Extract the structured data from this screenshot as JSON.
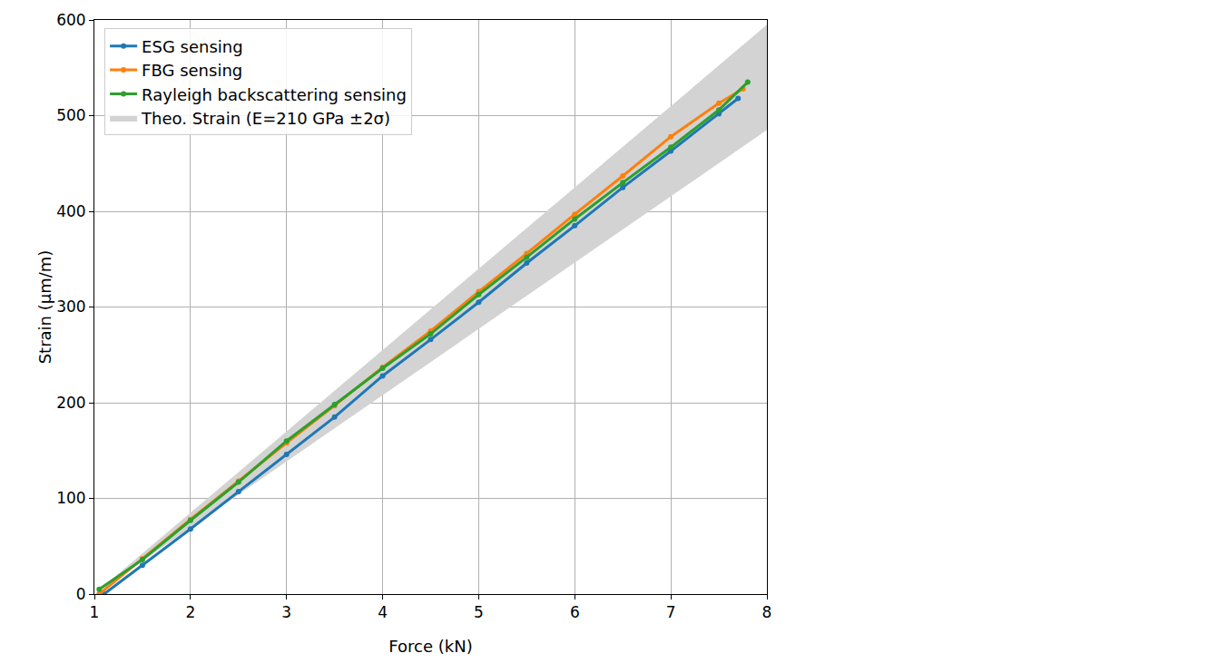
{
  "chart_data": {
    "type": "scatter",
    "xlabel": "Force (kN)",
    "ylabel": "Strain (µm/m)",
    "xlim": [
      1,
      8
    ],
    "ylim": [
      0,
      600
    ],
    "xticks": [
      1,
      2,
      3,
      4,
      5,
      6,
      7,
      8
    ],
    "yticks": [
      0,
      100,
      200,
      300,
      400,
      500,
      600
    ],
    "grid": true,
    "legend": "upper left",
    "series": [
      {
        "name": "ESG sensing",
        "color": "#1f77b4",
        "marker": "circle",
        "line_style": "solid",
        "x": [
          1.1,
          1.5,
          2,
          2.5,
          3,
          3.5,
          4,
          4.5,
          5,
          5.5,
          6,
          6.5,
          7,
          7.5,
          7.7
        ],
        "values": [
          0,
          30,
          68,
          107,
          146,
          185,
          228,
          266,
          305,
          346,
          385,
          425,
          463,
          502,
          518
        ]
      },
      {
        "name": "FBG sensing",
        "color": "#ff7f0e",
        "marker": "circle",
        "line_style": "solid",
        "x": [
          1.05,
          1.5,
          2,
          2.5,
          3,
          3.5,
          4,
          4.5,
          5,
          5.5,
          6,
          6.5,
          7,
          7.5,
          7.75
        ],
        "values": [
          0,
          37,
          78,
          118,
          158,
          197,
          237,
          275,
          316,
          356,
          397,
          437,
          478,
          513,
          528
        ]
      },
      {
        "name": "Rayleigh backscattering sensing",
        "color": "#2ca02c",
        "marker": "circle",
        "line_style": "solid",
        "x": [
          1.05,
          1.5,
          2,
          2.5,
          3,
          3.5,
          4,
          4.5,
          5,
          5.5,
          6,
          6.5,
          7,
          7.5,
          7.8
        ],
        "values": [
          5,
          36,
          77,
          117,
          160,
          198,
          236,
          272,
          313,
          352,
          392,
          430,
          467,
          506,
          535
        ]
      }
    ],
    "band": {
      "name": "Theo. Strain (E=210 GPa ±2σ)",
      "color": "#d3d3d3",
      "x": [
        1,
        8
      ],
      "lower": [
        0,
        485
      ],
      "upper": [
        0,
        595
      ]
    }
  }
}
